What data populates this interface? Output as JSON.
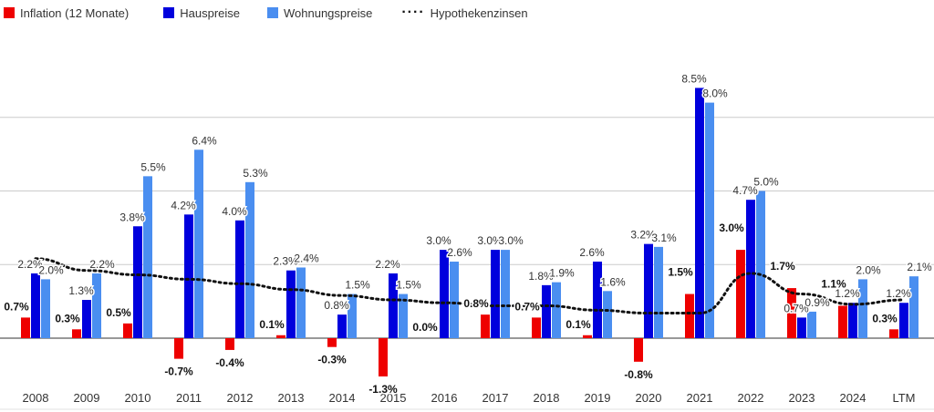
{
  "chart_data": {
    "type": "bar",
    "categories": [
      "2008",
      "2009",
      "2010",
      "2011",
      "2012",
      "2013",
      "2014",
      "2015",
      "2016",
      "2017",
      "2018",
      "2019",
      "2020",
      "2021",
      "2022",
      "2023",
      "2024",
      "LTM"
    ],
    "series": [
      {
        "name": "Inflation (12 Monate)",
        "type": "bar",
        "color": "#ee0000",
        "values": [
          0.7,
          0.3,
          0.5,
          -0.7,
          -0.4,
          0.1,
          -0.3,
          -1.3,
          0.0,
          0.8,
          0.7,
          0.1,
          -0.8,
          1.5,
          3.0,
          1.7,
          1.1,
          0.3
        ],
        "labels": [
          "0.7%",
          "0.3%",
          "0.5%",
          "-0.7%",
          "-0.4%",
          "0.1%",
          "-0.3%",
          "-1.3%",
          "0.0%",
          "0.8%",
          "0.7%",
          "0.1%",
          "-0.8%",
          "1.5%",
          "3.0%",
          "1.7%",
          "1.1%",
          "0.3%"
        ]
      },
      {
        "name": "Hauspreise",
        "type": "bar",
        "color": "#0000dd",
        "values": [
          2.2,
          1.3,
          3.8,
          4.2,
          4.0,
          2.3,
          0.8,
          2.2,
          3.0,
          3.0,
          1.8,
          2.6,
          3.2,
          8.5,
          4.7,
          0.7,
          1.2,
          1.2
        ],
        "labels": [
          "2.2%",
          "1.3%",
          "3.8%",
          "4.2%",
          "4.0%",
          "2.3%",
          "0.8%",
          "2.2%",
          "3.0%",
          "3.0%",
          "1.8%",
          "2.6%",
          "3.2%",
          "8.5%",
          "4.7%",
          "0.7%",
          "1.2%",
          "1.2%"
        ]
      },
      {
        "name": "Wohnungspreise",
        "type": "bar",
        "color": "#4a8ef0",
        "values": [
          2.0,
          2.2,
          5.5,
          6.4,
          5.3,
          2.4,
          1.5,
          1.5,
          2.6,
          3.0,
          1.9,
          1.6,
          3.1,
          8.0,
          5.0,
          0.9,
          2.0,
          2.1
        ],
        "labels": [
          "2.0%",
          "2.2%",
          "5.5%",
          "6.4%",
          "5.3%",
          "2.4%",
          "1.5%",
          "1.5%",
          "2.6%",
          "3.0%",
          "1.9%",
          "1.6%",
          "3.1%",
          "8.0%",
          "5.0%",
          "0.9%",
          "2.0%",
          "2.1%"
        ]
      },
      {
        "name": "Hypothekenzinsen",
        "type": "line",
        "color": "#111111",
        "values": [
          2.7,
          2.3,
          2.15,
          2.0,
          1.85,
          1.65,
          1.45,
          1.3,
          1.2,
          1.1,
          1.1,
          0.95,
          0.85,
          0.85,
          2.2,
          1.5,
          1.15,
          1.3
        ]
      }
    ],
    "ylim": [
      -1.4,
      9.0
    ],
    "grid": true,
    "legend": "top-left",
    "xlabel": "",
    "ylabel": "",
    "title": ""
  }
}
